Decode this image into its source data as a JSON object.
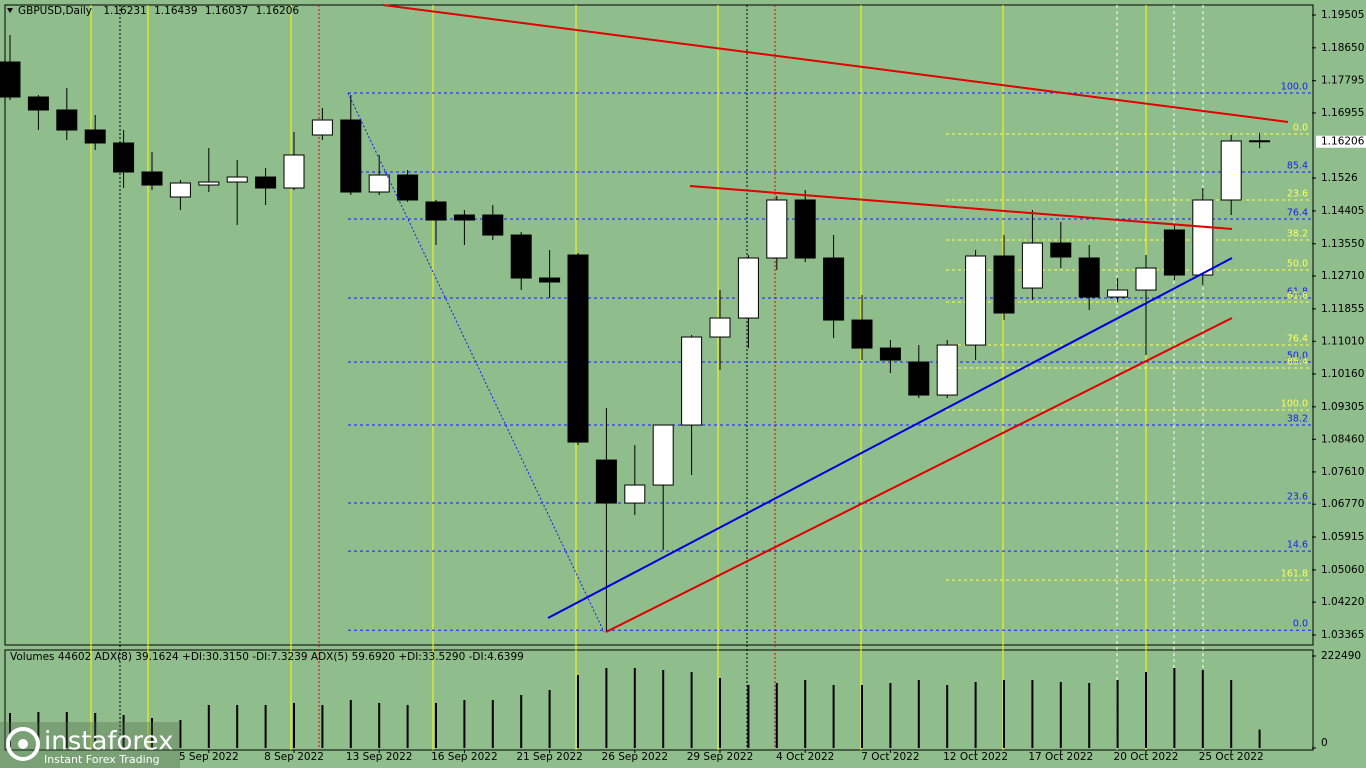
{
  "chart_data": [
    {
      "type": "candlestick",
      "title": "GBPUSD,Daily",
      "categories": [
        null,
        null,
        null,
        null,
        null,
        null,
        null,
        "5 Sep 2022",
        null,
        null,
        "8 Sep 2022",
        null,
        null,
        "13 Sep 2022",
        null,
        null,
        "16 Sep 2022",
        null,
        null,
        "21 Sep 2022",
        null,
        null,
        "26 Sep 2022",
        null,
        null,
        "29 Sep 2022",
        null,
        null,
        "4 Oct 2022",
        null,
        null,
        "7 Oct 2022",
        null,
        null,
        "12 Oct 2022",
        null,
        null,
        "17 Oct 2022",
        null,
        null,
        "20 Oct 2022",
        null,
        null,
        "25 Oct 2022",
        null
      ],
      "open": [
        1.18281,
        1.1737,
        1.17032,
        1.16511,
        1.16173,
        1.15418,
        1.14767,
        1.15079,
        1.15157,
        1.15287,
        1.15001,
        1.16381,
        1.16771,
        1.14897,
        1.15339,
        1.14637,
        1.14298,
        1.14298,
        1.13777,
        1.12658,
        1.13257,
        1.07919,
        1.068,
        1.07269,
        1.08831,
        1.11122,
        1.11616,
        1.13179,
        1.14689,
        1.13179,
        1.11564,
        1.10835,
        1.10471,
        1.09612,
        1.10913,
        1.13231,
        1.12397,
        1.13569,
        1.13179,
        1.12163,
        1.12345,
        1.13908,
        1.12736,
        1.14689,
        1.16231
      ],
      "high": [
        1.18984,
        1.17422,
        1.17604,
        1.16902,
        1.16511,
        1.15938,
        1.15209,
        1.16042,
        1.1573,
        1.15522,
        1.16459,
        1.17084,
        1.17422,
        1.1586,
        1.1547,
        1.14689,
        1.14428,
        1.14558,
        1.13855,
        1.13387,
        1.13309,
        1.09273,
        1.0831,
        1.08831,
        1.11174,
        1.12345,
        1.13257,
        1.14793,
        1.14949,
        1.13777,
        1.12215,
        1.11044,
        1.10913,
        1.11044,
        1.13387,
        1.13777,
        1.14428,
        1.14116,
        1.13517,
        1.12658,
        1.13257,
        1.14038,
        1.15001,
        1.16381,
        1.16439
      ],
      "low": [
        1.17292,
        1.16511,
        1.16251,
        1.1599,
        1.15001,
        1.14949,
        1.14428,
        1.14897,
        1.14038,
        1.14558,
        1.14949,
        1.16251,
        1.14819,
        1.14819,
        1.14637,
        1.13517,
        1.13517,
        1.13647,
        1.12345,
        1.12137,
        1.0831,
        1.03441,
        1.06488,
        1.05576,
        1.07529,
        1.10263,
        1.10835,
        1.12866,
        1.13074,
        1.11096,
        1.10523,
        1.10185,
        1.09534,
        1.09534,
        1.10523,
        1.11564,
        1.12085,
        1.12918,
        1.11825,
        1.12033,
        1.10653,
        1.12606,
        1.12476,
        1.14298,
        1.16037
      ],
      "close": [
        1.1737,
        1.17032,
        1.16511,
        1.16173,
        1.15418,
        1.15079,
        1.15131,
        1.15157,
        1.15287,
        1.15001,
        1.1586,
        1.16771,
        1.14897,
        1.15339,
        1.14689,
        1.14168,
        1.14168,
        1.13777,
        1.12658,
        1.12554,
        1.08388,
        1.068,
        1.07269,
        1.08831,
        1.11122,
        1.11616,
        1.13179,
        1.14689,
        1.13179,
        1.11564,
        1.10835,
        1.10523,
        1.09612,
        1.10913,
        1.13231,
        1.11747,
        1.13569,
        1.13205,
        1.12163,
        1.12345,
        1.12918,
        1.12736,
        1.14689,
        1.16225,
        1.16206
      ],
      "up_color": "#ffffff",
      "down_color": "#000000",
      "ylim": [
        1.03105,
        1.19765
      ],
      "yticks": [
        1.19505,
        {
          "value": 1.1865,
          "label": "1.18650"
        },
        1.17795,
        1.16955,
        1.1526,
        1.14405,
        {
          "value": 1.1355,
          "label": "1.13550"
        },
        {
          "value": 1.1271,
          "label": "1.12710"
        },
        1.11855,
        {
          "value": 1.1101,
          "label": "1.11010"
        },
        {
          "value": 1.1016,
          "label": "1.10160"
        },
        1.09305,
        {
          "value": 1.0846,
          "label": "1.08460"
        },
        {
          "value": 1.0761,
          "label": "1.07610"
        },
        {
          "value": 1.0677,
          "label": "1.06770"
        },
        1.05915,
        {
          "value": 1.0506,
          "label": "1.05060"
        },
        {
          "value": 1.0422,
          "label": "1.04220"
        },
        1.03365
      ],
      "fib_levels": [
        {
          "label": "100.0",
          "value": 1.17474,
          "color": "#1a1aff"
        },
        {
          "label": "85.4",
          "value": 1.15418,
          "color": "#1a1aff"
        },
        {
          "label": "76.4",
          "value": 1.14194,
          "color": "#1a1aff"
        },
        {
          "label": "61.8",
          "value": 1.12137,
          "color": "#1a1aff"
        },
        {
          "label": "50.0",
          "value": 1.10471,
          "color": "#1a1aff"
        },
        {
          "label": "38.2",
          "value": 1.08831,
          "color": "#1a1aff"
        },
        {
          "label": "23.6",
          "value": 1.068,
          "color": "#1a1aff"
        },
        {
          "label": "14.6",
          "value": 1.0555,
          "color": "#1a1aff"
        },
        {
          "label": "0.0",
          "value": 1.0349,
          "color": "#1a1aff"
        },
        {
          "label": "0.0",
          "value": 1.16407,
          "color": "#ffff55"
        },
        {
          "label": "23.6",
          "value": 1.14689,
          "color": "#ffff55"
        },
        {
          "label": "38.2",
          "value": 1.13647,
          "color": "#ffff55"
        },
        {
          "label": "50.0",
          "value": 1.12866,
          "color": "#ffff55"
        },
        {
          "label": "61.8",
          "value": 1.12033,
          "color": "#ffff55"
        },
        {
          "label": "76.4",
          "value": 1.10913,
          "color": "#ffff55"
        },
        {
          "label": "85.4",
          "value": 1.10315,
          "color": "#ffff55"
        },
        {
          "label": "100.0",
          "value": 1.09222,
          "color": "#ffff55"
        },
        {
          "label": "161.8",
          "value": 1.04795,
          "color": "#ffff55"
        }
      ]
    },
    {
      "type": "bar",
      "title": "Volumes 44602  ADX(8) 39.1624 +DI:30.3150 -DI:7.3239  ADX(5) 59.6920 +DI:33.5290 -DI:4.6399",
      "values": [
        84630,
        87048,
        87048,
        84630,
        79794,
        72540,
        67704,
        103974,
        103974,
        103974,
        108810,
        103974,
        116064,
        108810,
        103974,
        108810,
        116064,
        116064,
        128154,
        140244,
        176514,
        193440,
        193440,
        188604,
        183768,
        169260,
        152334,
        157170,
        164424,
        152334,
        152334,
        157170,
        164424,
        152334,
        159588,
        164424,
        164424,
        159588,
        157170,
        164424,
        183768,
        193440,
        188604,
        164424,
        44602
      ],
      "color": "#000000",
      "ylim": [
        0,
        222490
      ],
      "yticks": [
        222490,
        0
      ]
    }
  ],
  "watermark": {
    "brand": "instaforex",
    "tagline": "Instant Forex Trading"
  }
}
